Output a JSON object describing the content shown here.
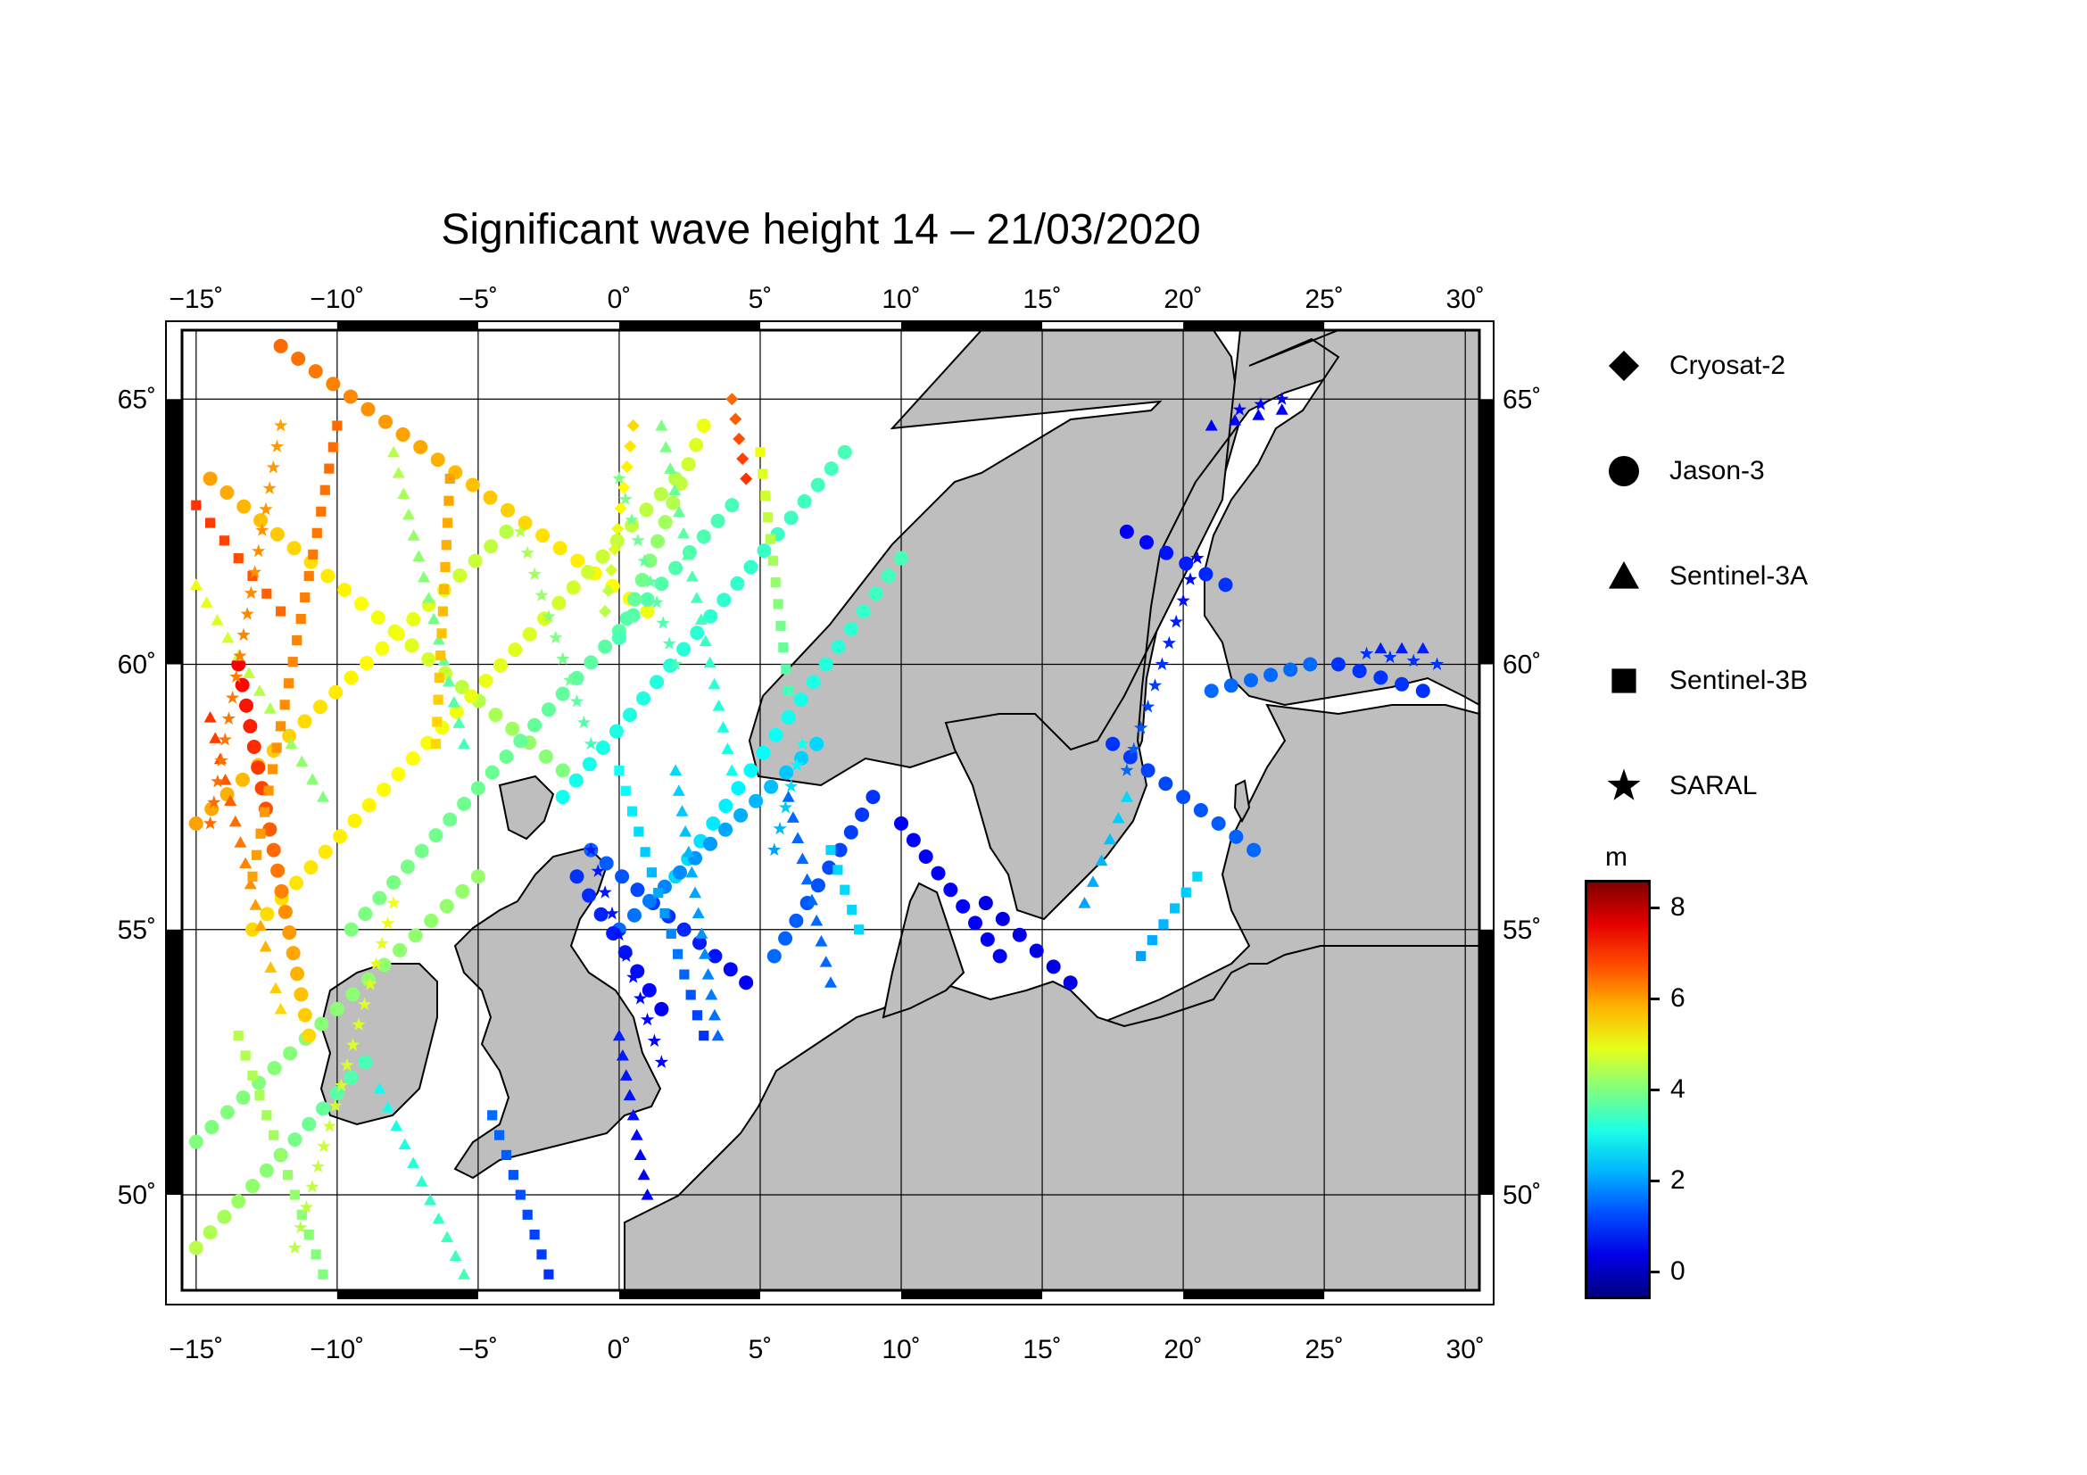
{
  "title": "Significant wave height 14 – 21/03/2020",
  "map": {
    "lon_range": [
      -15.5,
      30.5
    ],
    "lat_range": [
      48.2,
      66.3
    ],
    "lon_ticks": [
      {
        "value": -15,
        "label": "−15˚"
      },
      {
        "value": -10,
        "label": "−10˚"
      },
      {
        "value": -5,
        "label": "−5˚"
      },
      {
        "value": 0,
        "label": "0˚"
      },
      {
        "value": 5,
        "label": "5˚"
      },
      {
        "value": 10,
        "label": "10˚"
      },
      {
        "value": 15,
        "label": "15˚"
      },
      {
        "value": 20,
        "label": "20˚"
      },
      {
        "value": 25,
        "label": "25˚"
      },
      {
        "value": 30,
        "label": "30˚"
      }
    ],
    "lat_ticks": [
      {
        "value": 65,
        "label": "65˚"
      },
      {
        "value": 60,
        "label": "60˚"
      },
      {
        "value": 55,
        "label": "55˚"
      },
      {
        "value": 50,
        "label": "50˚"
      }
    ],
    "land_color": "#bebebe",
    "sea_color": "#ffffff",
    "grid": true
  },
  "legend": {
    "items": [
      {
        "label": "Cryosat-2",
        "icon": "diamond"
      },
      {
        "label": "Jason-3",
        "icon": "circle"
      },
      {
        "label": "Sentinel-3A",
        "icon": "triangle"
      },
      {
        "label": "Sentinel-3B",
        "icon": "square"
      },
      {
        "label": "SARAL",
        "icon": "star"
      }
    ]
  },
  "colorbar": {
    "unit": "m",
    "min": -0.6,
    "max": 8.6,
    "colormap": "jet",
    "ticks": [
      {
        "value": 8,
        "label": "8"
      },
      {
        "value": 6,
        "label": "6"
      },
      {
        "value": 4,
        "label": "4"
      },
      {
        "value": 2,
        "label": "2"
      },
      {
        "value": 0,
        "label": "0"
      }
    ]
  },
  "tracks": [
    {
      "mission": "Jason-3",
      "start": [
        -14.5,
        63.5
      ],
      "end": [
        -2.0,
        58.0
      ],
      "hs_start": 6.0,
      "hs_end": 4.0
    },
    {
      "mission": "Jason-3",
      "start": [
        -12.0,
        66.0
      ],
      "end": [
        1.0,
        61.0
      ],
      "hs_start": 6.5,
      "hs_end": 5.0
    },
    {
      "mission": "Jason-3",
      "start": [
        -15.0,
        57.0
      ],
      "end": [
        -4.0,
        62.5
      ],
      "hs_start": 6.0,
      "hs_end": 4.5
    },
    {
      "mission": "Jason-3",
      "start": [
        -13.0,
        55.0
      ],
      "end": [
        2.0,
        63.5
      ],
      "hs_start": 5.5,
      "hs_end": 4.5
    },
    {
      "mission": "Jason-3",
      "start": [
        -15.0,
        51.0
      ],
      "end": [
        -5.0,
        56.0
      ],
      "hs_start": 4.0,
      "hs_end": 4.2
    },
    {
      "mission": "Jason-3",
      "start": [
        -9.5,
        55.0
      ],
      "end": [
        4.0,
        63.0
      ],
      "hs_start": 4.0,
      "hs_end": 3.5
    },
    {
      "mission": "Jason-3",
      "start": [
        -2.0,
        57.5
      ],
      "end": [
        8.0,
        64.0
      ],
      "hs_start": 3.0,
      "hs_end": 3.5
    },
    {
      "mission": "Jason-3",
      "start": [
        -13.5,
        60.0
      ],
      "end": [
        -11.0,
        53.0
      ],
      "hs_start": 7.5,
      "hs_end": 5.5
    },
    {
      "mission": "Jason-3",
      "start": [
        0.0,
        60.5
      ],
      "end": [
        3.0,
        64.5
      ],
      "hs_start": 3.5,
      "hs_end": 5.0
    },
    {
      "mission": "Jason-3",
      "start": [
        2.0,
        56.0
      ],
      "end": [
        10.0,
        62.0
      ],
      "hs_start": 2.5,
      "hs_end": 3.5
    },
    {
      "mission": "Jason-3",
      "start": [
        -1.0,
        56.5
      ],
      "end": [
        4.5,
        54.0
      ],
      "hs_start": 1.5,
      "hs_end": 0.5
    },
    {
      "mission": "Jason-3",
      "start": [
        0.0,
        55.0
      ],
      "end": [
        7.0,
        58.5
      ],
      "hs_start": 1.5,
      "hs_end": 2.5
    },
    {
      "mission": "Jason-3",
      "start": [
        -1.5,
        56.0
      ],
      "end": [
        1.5,
        53.5
      ],
      "hs_start": 1.0,
      "hs_end": 0.5
    },
    {
      "mission": "Jason-3",
      "start": [
        5.5,
        54.5
      ],
      "end": [
        9.0,
        57.5
      ],
      "hs_start": 1.5,
      "hs_end": 1.0
    },
    {
      "mission": "Jason-3",
      "start": [
        10.0,
        57.0
      ],
      "end": [
        13.5,
        54.5
      ],
      "hs_start": 0.5,
      "hs_end": 0.5
    },
    {
      "mission": "Jason-3",
      "start": [
        13.0,
        55.5
      ],
      "end": [
        16.0,
        54.0
      ],
      "hs_start": 0.3,
      "hs_end": 0.3
    },
    {
      "mission": "Jason-3",
      "start": [
        17.5,
        58.5
      ],
      "end": [
        22.5,
        56.5
      ],
      "hs_start": 1.0,
      "hs_end": 1.5
    },
    {
      "mission": "Jason-3",
      "start": [
        18.0,
        62.5
      ],
      "end": [
        21.5,
        61.5
      ],
      "hs_start": 0.5,
      "hs_end": 1.0
    },
    {
      "mission": "Jason-3",
      "start": [
        21.0,
        59.5
      ],
      "end": [
        24.5,
        60.0
      ],
      "hs_start": 1.5,
      "hs_end": 1.5
    },
    {
      "mission": "Jason-3",
      "start": [
        25.5,
        60.0
      ],
      "end": [
        28.5,
        59.5
      ],
      "hs_start": 1.0,
      "hs_end": 1.0
    },
    {
      "mission": "Jason-3",
      "start": [
        -15.0,
        49.0
      ],
      "end": [
        -9.0,
        52.5
      ],
      "hs_start": 4.5,
      "hs_end": 3.5
    },
    {
      "mission": "Sentinel-3A",
      "start": [
        -15.0,
        61.5
      ],
      "end": [
        -10.5,
        57.5
      ],
      "hs_start": 5.0,
      "hs_end": 4.0
    },
    {
      "mission": "Sentinel-3A",
      "start": [
        -14.5,
        59.0
      ],
      "end": [
        -12.0,
        53.5
      ],
      "hs_start": 7.0,
      "hs_end": 5.5
    },
    {
      "mission": "Sentinel-3A",
      "start": [
        -8.0,
        64.0
      ],
      "end": [
        -5.5,
        58.5
      ],
      "hs_start": 4.5,
      "hs_end": 3.5
    },
    {
      "mission": "Sentinel-3A",
      "start": [
        1.5,
        64.5
      ],
      "end": [
        4.0,
        58.0
      ],
      "hs_start": 4.0,
      "hs_end": 3.0
    },
    {
      "mission": "Sentinel-3A",
      "start": [
        3.5,
        53.0
      ],
      "end": [
        2.0,
        58.0
      ],
      "hs_start": 1.5,
      "hs_end": 2.5
    },
    {
      "mission": "Sentinel-3A",
      "start": [
        6.0,
        57.5
      ],
      "end": [
        7.5,
        54.0
      ],
      "hs_start": 1.5,
      "hs_end": 1.5
    },
    {
      "mission": "Sentinel-3A",
      "start": [
        18.0,
        57.5
      ],
      "end": [
        16.5,
        55.5
      ],
      "hs_start": 2.5,
      "hs_end": 2.0
    },
    {
      "mission": "Sentinel-3A",
      "start": [
        21.0,
        64.5
      ],
      "end": [
        23.5,
        64.8
      ],
      "hs_start": 0.5,
      "hs_end": 0.5
    },
    {
      "mission": "Sentinel-3A",
      "start": [
        27.0,
        60.3
      ],
      "end": [
        28.5,
        60.3
      ],
      "hs_start": 0.8,
      "hs_end": 0.8
    },
    {
      "mission": "Sentinel-3A",
      "start": [
        -8.5,
        52.0
      ],
      "end": [
        -5.5,
        48.5
      ],
      "hs_start": 3.0,
      "hs_end": 3.5
    },
    {
      "mission": "Sentinel-3A",
      "start": [
        0.0,
        53.0
      ],
      "end": [
        1.0,
        50.0
      ],
      "hs_start": 0.8,
      "hs_end": 0.5
    },
    {
      "mission": "Sentinel-3B",
      "start": [
        -10.0,
        64.5
      ],
      "end": [
        -13.0,
        56.0
      ],
      "hs_start": 6.5,
      "hs_end": 6.0
    },
    {
      "mission": "Sentinel-3B",
      "start": [
        -15.0,
        63.0
      ],
      "end": [
        -12.0,
        61.0
      ],
      "hs_start": 7.0,
      "hs_end": 6.5
    },
    {
      "mission": "Sentinel-3B",
      "start": [
        -6.0,
        63.5
      ],
      "end": [
        -6.5,
        58.5
      ],
      "hs_start": 6.0,
      "hs_end": 5.5
    },
    {
      "mission": "Sentinel-3B",
      "start": [
        5.0,
        64.0
      ],
      "end": [
        6.0,
        59.5
      ],
      "hs_start": 5.0,
      "hs_end": 3.5
    },
    {
      "mission": "Sentinel-3B",
      "start": [
        3.0,
        53.0
      ],
      "end": [
        0.0,
        58.0
      ],
      "hs_start": 1.0,
      "hs_end": 3.0
    },
    {
      "mission": "Sentinel-3B",
      "start": [
        7.5,
        56.5
      ],
      "end": [
        8.5,
        55.0
      ],
      "hs_start": 2.5,
      "hs_end": 2.5
    },
    {
      "mission": "Sentinel-3B",
      "start": [
        20.5,
        56.0
      ],
      "end": [
        18.5,
        54.5
      ],
      "hs_start": 2.5,
      "hs_end": 2.0
    },
    {
      "mission": "Sentinel-3B",
      "start": [
        -4.5,
        51.5
      ],
      "end": [
        -2.5,
        48.5
      ],
      "hs_start": 1.5,
      "hs_end": 1.0
    },
    {
      "mission": "Sentinel-3B",
      "start": [
        -13.5,
        53.0
      ],
      "end": [
        -10.5,
        48.5
      ],
      "hs_start": 4.5,
      "hs_end": 4.0
    },
    {
      "mission": "SARAL",
      "start": [
        -12.0,
        64.5
      ],
      "end": [
        -14.5,
        57.0
      ],
      "hs_start": 6.0,
      "hs_end": 6.5
    },
    {
      "mission": "SARAL",
      "start": [
        -3.5,
        62.5
      ],
      "end": [
        -1.0,
        58.5
      ],
      "hs_start": 4.5,
      "hs_end": 3.5
    },
    {
      "mission": "SARAL",
      "start": [
        0.0,
        63.5
      ],
      "end": [
        2.0,
        60.0
      ],
      "hs_start": 4.0,
      "hs_end": 3.5
    },
    {
      "mission": "SARAL",
      "start": [
        -1.0,
        56.5
      ],
      "end": [
        1.5,
        52.5
      ],
      "hs_start": 0.8,
      "hs_end": 0.5
    },
    {
      "mission": "SARAL",
      "start": [
        6.5,
        58.5
      ],
      "end": [
        5.5,
        56.5
      ],
      "hs_start": 3.0,
      "hs_end": 2.0
    },
    {
      "mission": "SARAL",
      "start": [
        20.5,
        62.0
      ],
      "end": [
        18.0,
        58.0
      ],
      "hs_start": 0.5,
      "hs_end": 1.5
    },
    {
      "mission": "SARAL",
      "start": [
        22.0,
        64.8
      ],
      "end": [
        23.5,
        65.0
      ],
      "hs_start": 0.5,
      "hs_end": 0.5
    },
    {
      "mission": "SARAL",
      "start": [
        26.5,
        60.2
      ],
      "end": [
        29.0,
        60.0
      ],
      "hs_start": 1.0,
      "hs_end": 1.0
    },
    {
      "mission": "SARAL",
      "start": [
        -8.0,
        55.5
      ],
      "end": [
        -11.5,
        49.0
      ],
      "hs_start": 5.0,
      "hs_end": 4.5
    },
    {
      "mission": "Cryosat-2",
      "start": [
        0.5,
        64.5
      ],
      "end": [
        -0.5,
        61.0
      ],
      "hs_start": 5.5,
      "hs_end": 4.5
    },
    {
      "mission": "Cryosat-2",
      "start": [
        4.0,
        65.0
      ],
      "end": [
        4.5,
        63.5
      ],
      "hs_start": 6.5,
      "hs_end": 7.0
    }
  ]
}
